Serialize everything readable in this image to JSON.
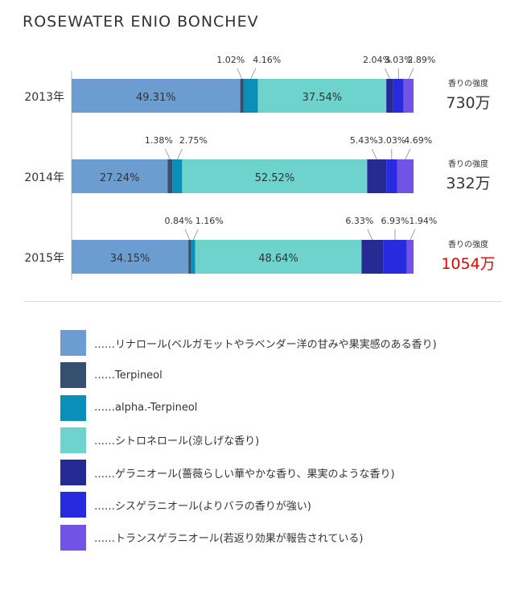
{
  "title": "ROSEWATER ENIO BONCHEV",
  "chart_data": {
    "type": "bar",
    "orientation": "horizontal",
    "stacked": true,
    "categories": [
      "2013年",
      "2014年",
      "2015年"
    ],
    "series": [
      {
        "name": "……リナロール(ベルガモットやラベンダー洋の甘みや果実感のある香り)",
        "color": "#6b9dd1",
        "values": [
          49.31,
          27.24,
          34.15
        ]
      },
      {
        "name": "……Terpineol",
        "color": "#34506e",
        "values": [
          1.02,
          1.38,
          0.84
        ]
      },
      {
        "name": "……alpha.-Terpineol",
        "color": "#0a8fb8",
        "values": [
          4.16,
          2.75,
          1.16
        ]
      },
      {
        "name": "……シトロネロール(涼しげな香り)",
        "color": "#6dd3cc",
        "values": [
          37.54,
          52.52,
          48.64
        ]
      },
      {
        "name": "……ゲラニオール(薔薇らしい華やかな香り、果実のような香り)",
        "color": "#262b94",
        "values": [
          2.04,
          5.43,
          6.33
        ]
      },
      {
        "name": "……シスゲラニオール(よりバラの香りが強い)",
        "color": "#262be0",
        "values": [
          3.03,
          3.03,
          6.93
        ]
      },
      {
        "name": "……トランスゲラニオール(若返り効果が報告されている)",
        "color": "#7352e6",
        "values": [
          2.89,
          4.69,
          1.94
        ]
      }
    ],
    "value_labels": [
      [
        "49.31%",
        "1.02%",
        "4.16%",
        "37.54%",
        "2.04%",
        "3.03%",
        "2.89%"
      ],
      [
        "27.24%",
        "1.38%",
        "2.75%",
        "52.52%",
        "5.43%",
        "3.03%",
        "4.69%"
      ],
      [
        "34.15%",
        "0.84%",
        "1.16%",
        "48.64%",
        "6.33%",
        "6.93%",
        "1.94%"
      ]
    ],
    "intensity_label": "香りの強度",
    "intensity": [
      "730万",
      "332万",
      "1054万"
    ],
    "intensity_colors": [
      "#333333",
      "#333333",
      "#e60000"
    ],
    "legend": "bottom"
  }
}
